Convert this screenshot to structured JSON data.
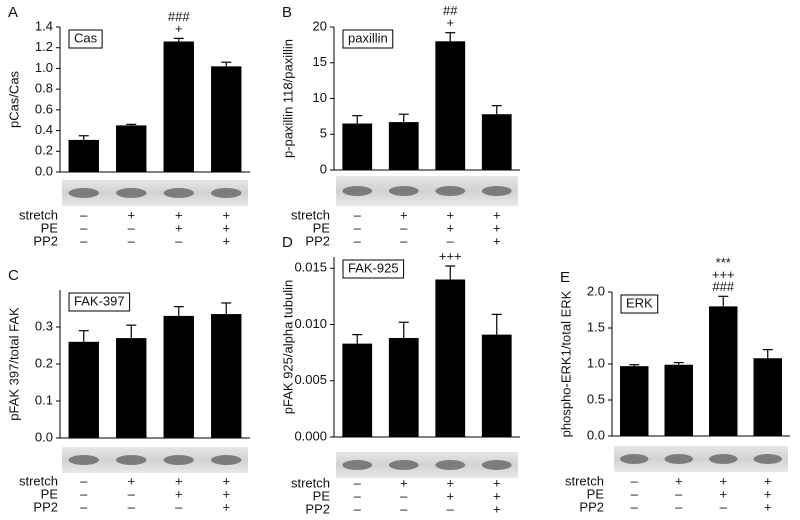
{
  "chart_data": [
    {
      "type": "bar",
      "panel": "A",
      "box_label": "Cas",
      "y_label": "pCas/Cas",
      "values": [
        0.31,
        0.45,
        1.26,
        1.02
      ],
      "errors": [
        0.04,
        0.01,
        0.03,
        0.04
      ],
      "bar_annotations": [
        null,
        null,
        [
          "###",
          "+"
        ],
        null
      ],
      "ylim": [
        0,
        1.4
      ],
      "yticks": [
        {
          "value": 0,
          "label": "0.0"
        },
        0.2,
        0.4,
        0.6,
        0.8,
        {
          "value": 1,
          "label": "1.0"
        },
        1.2,
        1.4
      ],
      "color": "#000000",
      "conditions": {
        "labels": [
          "stretch",
          "PE",
          "PP2"
        ],
        "rows": [
          [
            "–",
            "+",
            "+",
            "+"
          ],
          [
            "–",
            "–",
            "+",
            "+"
          ],
          [
            "–",
            "–",
            "–",
            "+"
          ]
        ]
      }
    },
    {
      "type": "bar",
      "panel": "B",
      "box_label": "paxillin",
      "y_label": "p-paxillin 118/paxillin",
      "values": [
        6.5,
        6.7,
        18,
        7.8
      ],
      "errors": [
        1.1,
        1.1,
        1.2,
        1.2
      ],
      "bar_annotations": [
        null,
        null,
        [
          "##",
          "+"
        ],
        null
      ],
      "ylim": [
        0,
        20
      ],
      "yticks": [
        0,
        5,
        10,
        15,
        20
      ],
      "color": "#000000",
      "conditions": {
        "labels": [
          "stretch",
          "PE",
          "PP2"
        ],
        "rows": [
          [
            "–",
            "+",
            "+",
            "+"
          ],
          [
            "–",
            "–",
            "+",
            "+"
          ],
          [
            "–",
            "–",
            "–",
            "+"
          ]
        ]
      }
    },
    {
      "type": "bar",
      "panel": "C",
      "box_label": "FAK-397",
      "y_label": "pFAK 397/total FAK",
      "values": [
        0.26,
        0.27,
        0.33,
        0.335
      ],
      "errors": [
        0.03,
        0.035,
        0.025,
        0.03
      ],
      "bar_annotations": [
        null,
        null,
        null,
        null
      ],
      "ylim": [
        0,
        0.4
      ],
      "yticks": [
        {
          "value": 0,
          "label": "0.0"
        },
        0.1,
        0.2,
        0.3
      ],
      "color": "#000000",
      "conditions": {
        "labels": [
          "stretch",
          "PE",
          "PP2"
        ],
        "rows": [
          [
            "–",
            "+",
            "+",
            "+"
          ],
          [
            "–",
            "–",
            "+",
            "+"
          ],
          [
            "–",
            "–",
            "–",
            "+"
          ]
        ]
      }
    },
    {
      "type": "bar",
      "panel": "D",
      "box_label": "FAK-925",
      "y_label": "pFAK 925/alpha tubulin",
      "values": [
        0.0083,
        0.0088,
        0.014,
        0.0091
      ],
      "errors": [
        0.0008,
        0.0014,
        0.0012,
        0.0018
      ],
      "bar_annotations": [
        null,
        null,
        [
          "+++"
        ],
        null
      ],
      "ylim": [
        0,
        0.016
      ],
      "yticks": [
        {
          "value": 0,
          "label": "0.000"
        },
        0.005,
        {
          "value": 0.01,
          "label": "0.010"
        },
        0.015
      ],
      "color": "#000000",
      "conditions": {
        "labels": [
          "stretch",
          "PE",
          "PP2"
        ],
        "rows": [
          [
            "–",
            "+",
            "+",
            "+"
          ],
          [
            "–",
            "–",
            "+",
            "+"
          ],
          [
            "–",
            "–",
            "–",
            "+"
          ]
        ]
      }
    },
    {
      "type": "bar",
      "panel": "E",
      "box_label": "ERK",
      "y_label": "phospho-ERK1/total ERK",
      "values": [
        0.97,
        0.99,
        1.8,
        1.08
      ],
      "errors": [
        0.02,
        0.03,
        0.14,
        0.12
      ],
      "bar_annotations": [
        null,
        null,
        [
          "***",
          "+++",
          "###"
        ],
        null
      ],
      "ylim": [
        0,
        2.0
      ],
      "yticks": [
        {
          "value": 0,
          "label": "0.0"
        },
        0.5,
        {
          "value": 1,
          "label": "1.0"
        },
        1.5,
        {
          "value": 2,
          "label": "2.0"
        }
      ],
      "color": "#000000",
      "conditions": {
        "labels": [
          "stretch",
          "PE",
          "PP2"
        ],
        "rows": [
          [
            "–",
            "+",
            "+",
            "+"
          ],
          [
            "–",
            "–",
            "+",
            "+"
          ],
          [
            "–",
            "–",
            "–",
            "+"
          ]
        ]
      }
    }
  ]
}
